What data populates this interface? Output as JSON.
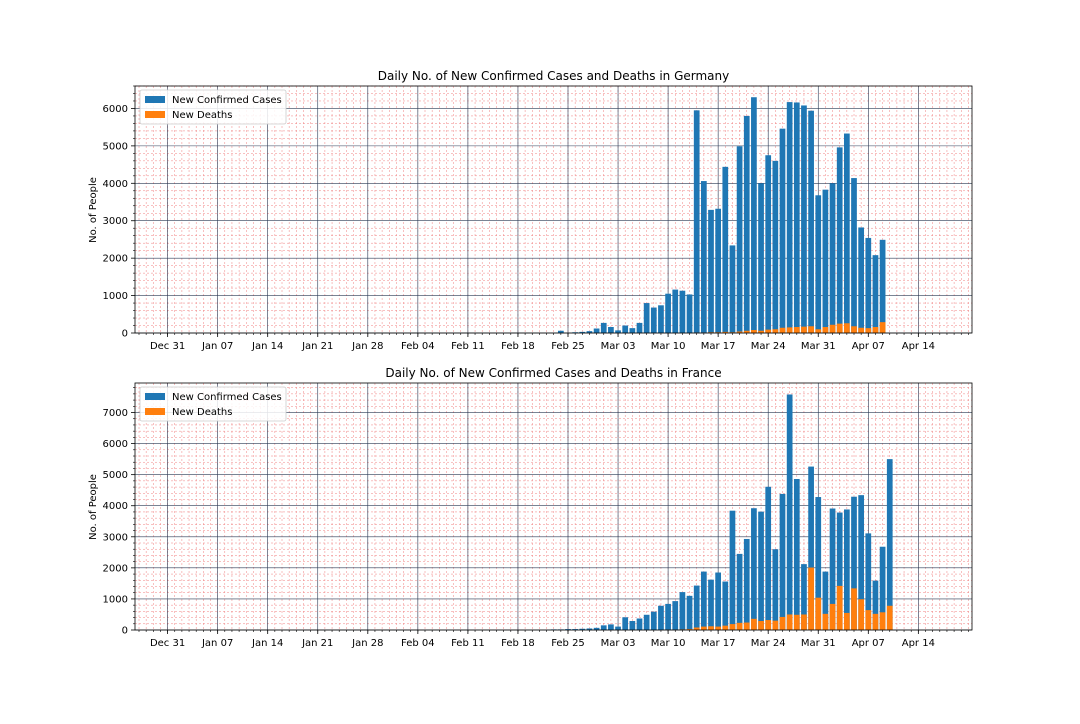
{
  "chart_data": [
    {
      "type": "bar",
      "title": "Daily No. of New Confirmed Cases and Deaths in Germany",
      "xlabel": "",
      "ylabel": "No. of People",
      "ylim": [
        0,
        6600
      ],
      "yticks": [
        0,
        1000,
        2000,
        3000,
        4000,
        5000,
        6000
      ],
      "grid": true,
      "legend_position": "top-left",
      "start_date": "Feb 27",
      "x_tick_labels": [
        "Dec 31",
        "Jan 07",
        "Jan 14",
        "Jan 21",
        "Jan 28",
        "Feb 04",
        "Feb 11",
        "Feb 18",
        "Feb 25",
        "Mar 03",
        "Mar 10",
        "Mar 17",
        "Mar 24",
        "Mar 31",
        "Apr 07",
        "Apr 14"
      ],
      "series": [
        {
          "name": "New Confirmed Cases",
          "color": "#1f77b4",
          "values": [
            0,
            60,
            0,
            20,
            30,
            50,
            120,
            270,
            160,
            70,
            200,
            130,
            270,
            800,
            680,
            740,
            1050,
            1160,
            1130,
            1030,
            5950,
            4060,
            3290,
            3320,
            4440,
            2340,
            4990,
            5800,
            6300,
            4000,
            4750,
            4600,
            5460,
            6170,
            6160,
            6080,
            5940,
            3680,
            3830,
            4000,
            4960,
            5330,
            4140,
            2820,
            2540,
            2080,
            2490
          ]
        },
        {
          "name": "New Deaths",
          "color": "#ff7f0e",
          "values": [
            0,
            0,
            0,
            0,
            0,
            0,
            0,
            0,
            0,
            0,
            0,
            0,
            0,
            0,
            0,
            0,
            0,
            0,
            0,
            0,
            10,
            10,
            20,
            20,
            30,
            20,
            40,
            60,
            80,
            60,
            90,
            100,
            140,
            150,
            160,
            170,
            180,
            100,
            160,
            220,
            250,
            260,
            180,
            140,
            130,
            160,
            290
          ]
        }
      ]
    },
    {
      "type": "bar",
      "title": "Daily No. of New Confirmed Cases and Deaths in France",
      "xlabel": "",
      "ylabel": "No. of People",
      "ylim": [
        0,
        7950
      ],
      "yticks": [
        0,
        1000,
        2000,
        3000,
        4000,
        5000,
        6000,
        7000
      ],
      "grid": true,
      "legend_position": "top-left",
      "start_date": "Feb 27",
      "x_tick_labels": [
        "Dec 31",
        "Jan 07",
        "Jan 14",
        "Jan 21",
        "Jan 28",
        "Feb 04",
        "Feb 11",
        "Feb 18",
        "Feb 25",
        "Mar 03",
        "Mar 10",
        "Mar 17",
        "Mar 24",
        "Mar 31",
        "Apr 07",
        "Apr 14"
      ],
      "series": [
        {
          "name": "New Confirmed Cases",
          "color": "#1f77b4",
          "values": [
            20,
            20,
            30,
            30,
            40,
            50,
            70,
            150,
            180,
            110,
            410,
            290,
            370,
            490,
            590,
            780,
            840,
            930,
            1220,
            1100,
            1430,
            1880,
            1620,
            1850,
            1560,
            3840,
            2450,
            2930,
            3920,
            3810,
            4610,
            2600,
            4380,
            7580,
            4860,
            2120,
            5260,
            4280,
            1880,
            3910,
            3780,
            3880,
            4290,
            4340,
            3110,
            1590,
            2680,
            5500
          ]
        },
        {
          "name": "New Deaths",
          "color": "#ff7f0e",
          "values": [
            0,
            0,
            0,
            0,
            0,
            0,
            0,
            0,
            0,
            0,
            0,
            0,
            0,
            0,
            0,
            0,
            10,
            10,
            20,
            30,
            80,
            110,
            120,
            110,
            140,
            190,
            230,
            240,
            360,
            290,
            320,
            300,
            420,
            500,
            490,
            500,
            2010,
            1040,
            520,
            840,
            1420,
            550,
            1340,
            990,
            640,
            520,
            570,
            780
          ]
        }
      ]
    }
  ]
}
